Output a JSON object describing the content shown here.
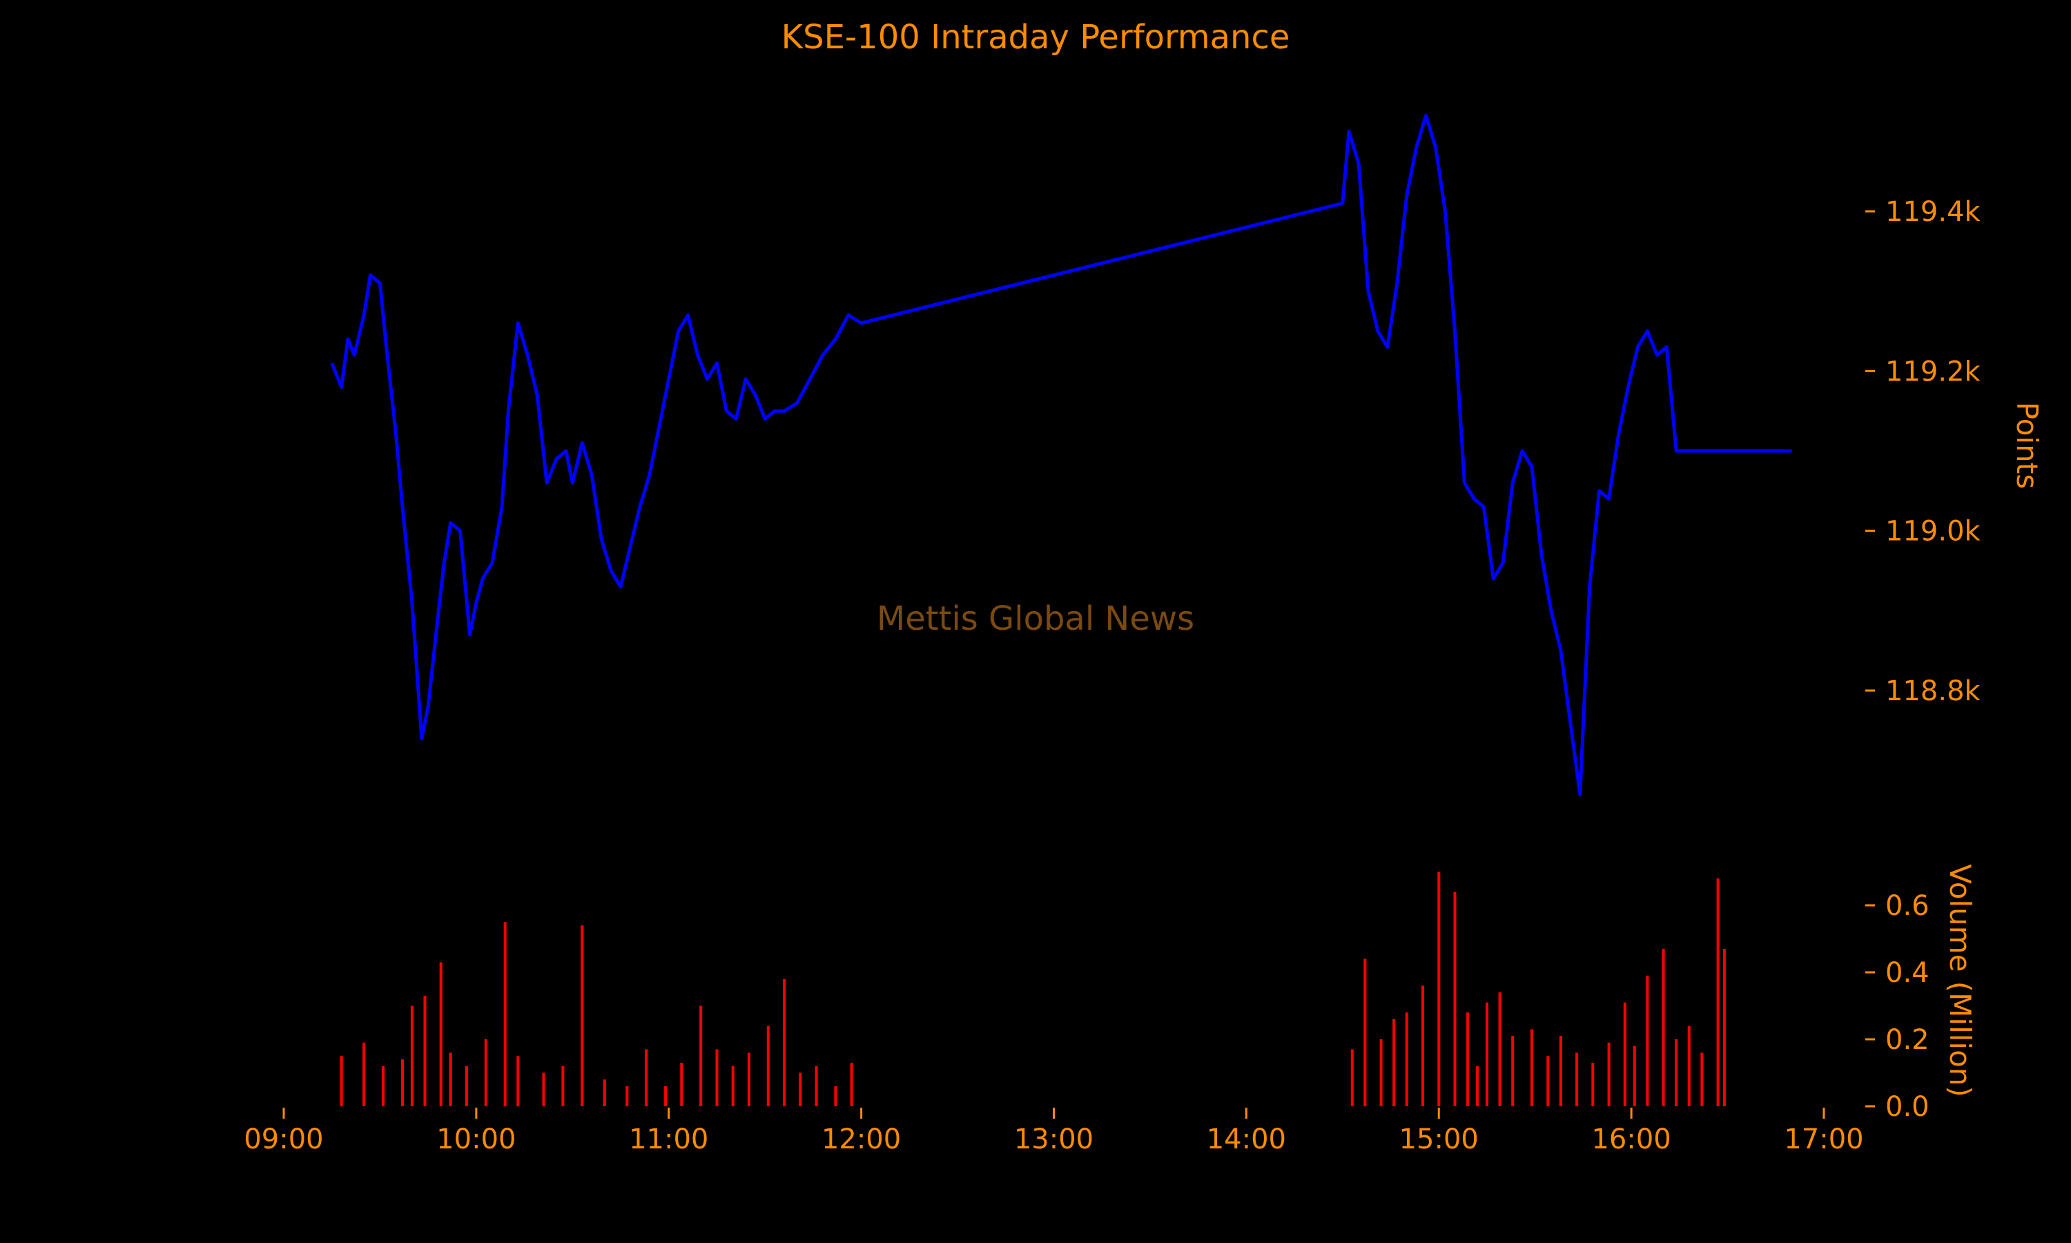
{
  "chart_data": {
    "type": "line",
    "title": "KSE-100 Intraday Performance",
    "watermark": "Mettis Global News",
    "x_axis": {
      "ticks": [
        "09:00",
        "10:00",
        "11:00",
        "12:00",
        "13:00",
        "14:00",
        "15:00",
        "16:00",
        "17:00"
      ],
      "range": [
        "09:00",
        "17:00"
      ]
    },
    "price_axis": {
      "label": "Points",
      "ticks": [
        118.8,
        119.0,
        119.2,
        119.4
      ],
      "tick_labels": [
        "118.8k",
        "119.0k",
        "119.2k",
        "119.4k"
      ],
      "unit": "thousands of points"
    },
    "volume_axis": {
      "label": "Volume (Million)",
      "ticks": [
        0.0,
        0.2,
        0.4,
        0.6
      ],
      "tick_labels": [
        "0.0",
        "0.2",
        "0.4",
        "0.6"
      ]
    },
    "series": [
      {
        "name": "",
        "kind": "line",
        "color": "#0000ff",
        "x": [
          "09:15",
          "09:18",
          "09:20",
          "09:22",
          "09:25",
          "09:27",
          "09:30",
          "09:32",
          "09:35",
          "09:37",
          "09:40",
          "09:43",
          "09:45",
          "09:48",
          "09:50",
          "09:52",
          "09:55",
          "09:58",
          "10:00",
          "10:02",
          "10:05",
          "10:08",
          "10:10",
          "10:13",
          "10:16",
          "10:19",
          "10:22",
          "10:25",
          "10:28",
          "10:30",
          "10:33",
          "10:36",
          "10:39",
          "10:42",
          "10:45",
          "10:48",
          "10:51",
          "10:54",
          "10:57",
          "11:00",
          "11:03",
          "11:06",
          "11:09",
          "11:12",
          "11:15",
          "11:18",
          "11:21",
          "11:24",
          "11:27",
          "11:30",
          "11:33",
          "11:36",
          "11:40",
          "11:44",
          "11:48",
          "11:52",
          "11:56",
          "12:00",
          "14:30",
          "14:32",
          "14:35",
          "14:38",
          "14:41",
          "14:44",
          "14:47",
          "14:50",
          "14:53",
          "14:56",
          "14:59",
          "15:02",
          "15:05",
          "15:08",
          "15:11",
          "15:14",
          "15:17",
          "15:20",
          "15:23",
          "15:26",
          "15:29",
          "15:32",
          "15:35",
          "15:38",
          "15:41",
          "15:44",
          "15:47",
          "15:50",
          "15:53",
          "15:56",
          "15:59",
          "16:02",
          "16:05",
          "16:08",
          "16:11",
          "16:14",
          "16:17",
          "16:20",
          "16:23",
          "16:26",
          "16:29",
          "16:30",
          "16:50"
        ],
        "values": [
          119.21,
          119.18,
          119.24,
          119.22,
          119.27,
          119.32,
          119.31,
          119.23,
          119.12,
          119.03,
          118.91,
          118.74,
          118.78,
          118.89,
          118.96,
          119.01,
          119.0,
          118.87,
          118.91,
          118.94,
          118.96,
          119.03,
          119.15,
          119.26,
          119.22,
          119.17,
          119.06,
          119.09,
          119.1,
          119.06,
          119.11,
          119.07,
          118.99,
          118.95,
          118.93,
          118.98,
          119.03,
          119.07,
          119.13,
          119.19,
          119.25,
          119.27,
          119.22,
          119.19,
          119.21,
          119.15,
          119.14,
          119.19,
          119.17,
          119.14,
          119.15,
          119.15,
          119.16,
          119.19,
          119.22,
          119.24,
          119.27,
          119.26,
          119.41,
          119.5,
          119.46,
          119.3,
          119.25,
          119.23,
          119.31,
          119.42,
          119.48,
          119.52,
          119.48,
          119.4,
          119.25,
          119.06,
          119.04,
          119.03,
          118.94,
          118.96,
          119.06,
          119.1,
          119.08,
          118.97,
          118.9,
          118.85,
          118.76,
          118.67,
          118.93,
          119.05,
          119.04,
          119.12,
          119.18,
          119.23,
          119.25,
          119.22,
          119.23,
          119.1,
          119.1,
          119.1,
          119.1,
          119.1,
          119.1,
          119.1,
          119.1
        ]
      },
      {
        "name": "",
        "kind": "bar",
        "color": "#ff0000",
        "x": [
          "09:18",
          "09:25",
          "09:31",
          "09:37",
          "09:40",
          "09:44",
          "09:49",
          "09:52",
          "09:57",
          "10:03",
          "10:09",
          "10:13",
          "10:21",
          "10:27",
          "10:33",
          "10:40",
          "10:47",
          "10:53",
          "10:59",
          "11:04",
          "11:10",
          "11:15",
          "11:20",
          "11:25",
          "11:31",
          "11:36",
          "11:41",
          "11:46",
          "11:52",
          "11:57",
          "14:33",
          "14:37",
          "14:42",
          "14:46",
          "14:50",
          "14:55",
          "15:00",
          "15:05",
          "15:09",
          "15:12",
          "15:15",
          "15:19",
          "15:23",
          "15:29",
          "15:34",
          "15:38",
          "15:43",
          "15:48",
          "15:53",
          "15:58",
          "16:01",
          "16:05",
          "16:10",
          "16:14",
          "16:18",
          "16:22",
          "16:27",
          "16:29"
        ],
        "values": [
          0.15,
          0.19,
          0.12,
          0.14,
          0.3,
          0.33,
          0.43,
          0.16,
          0.12,
          0.2,
          0.55,
          0.15,
          0.1,
          0.12,
          0.54,
          0.08,
          0.06,
          0.17,
          0.06,
          0.13,
          0.3,
          0.17,
          0.12,
          0.16,
          0.24,
          0.38,
          0.1,
          0.12,
          0.06,
          0.13,
          0.17,
          0.44,
          0.2,
          0.26,
          0.28,
          0.36,
          0.7,
          0.64,
          0.28,
          0.12,
          0.31,
          0.34,
          0.21,
          0.23,
          0.15,
          0.21,
          0.16,
          0.13,
          0.19,
          0.31,
          0.18,
          0.39,
          0.47,
          0.2,
          0.24,
          0.16,
          0.68,
          0.47
        ]
      }
    ],
    "grid": false
  }
}
